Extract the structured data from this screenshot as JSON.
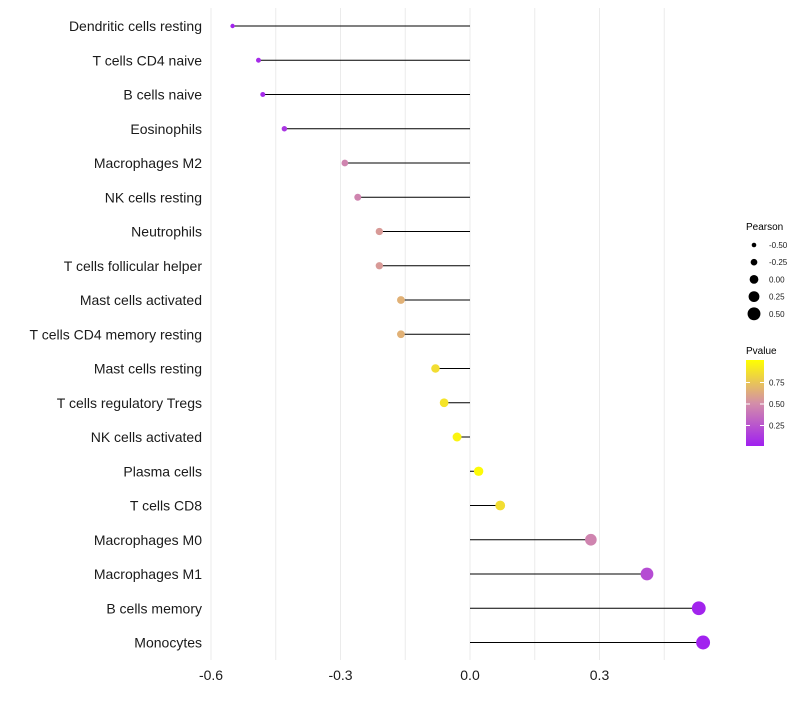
{
  "chart_data": {
    "type": "lollipop",
    "title": "",
    "xlabel": "",
    "ylabel": "",
    "xlim": [
      -0.6,
      0.55
    ],
    "x_ticks": [
      -0.6,
      -0.3,
      0.0,
      0.3
    ],
    "x_tick_labels": [
      "-0.6",
      "-0.3",
      "0.0",
      "0.3"
    ],
    "categories": [
      "Dendritic cells resting",
      "T cells CD4 naive",
      "B cells naive",
      "Eosinophils",
      "Macrophages M2",
      "NK cells resting",
      "Neutrophils",
      "T cells follicular helper",
      "Mast cells activated",
      "T cells CD4 memory resting",
      "Mast cells resting",
      "T cells regulatory  Tregs ",
      "NK cells activated",
      "Plasma cells",
      "T cells CD8",
      "Macrophages M0",
      "Macrophages M1",
      "B cells memory",
      "Monocytes"
    ],
    "pearson": [
      -0.55,
      -0.49,
      -0.48,
      -0.43,
      -0.29,
      -0.26,
      -0.21,
      -0.21,
      -0.16,
      -0.16,
      -0.08,
      -0.06,
      -0.03,
      0.02,
      0.07,
      0.28,
      0.41,
      0.53,
      0.54
    ],
    "pvalue": [
      0.02,
      0.05,
      0.05,
      0.1,
      0.45,
      0.45,
      0.55,
      0.55,
      0.65,
      0.65,
      0.85,
      0.88,
      0.95,
      0.98,
      0.85,
      0.45,
      0.2,
      0.02,
      0.01
    ],
    "legend_size": {
      "title": "Pearson",
      "values": [
        -0.5,
        -0.25,
        0.0,
        0.25,
        0.5
      ],
      "labels": [
        "-0.50",
        "-0.25",
        "0.00",
        "0.25",
        "0.50"
      ]
    },
    "legend_color": {
      "title": "Pvalue",
      "ticks": [
        0.75,
        0.5,
        0.25
      ],
      "labels": [
        "0.75",
        "0.50",
        "0.25"
      ],
      "low_color": "#a020f0",
      "mid_color": "#d48fa8",
      "high_color": "#ffff00",
      "range": [
        0.0,
        1.0
      ]
    },
    "segment_color": "#000000",
    "grid_color": "#ebebeb"
  }
}
